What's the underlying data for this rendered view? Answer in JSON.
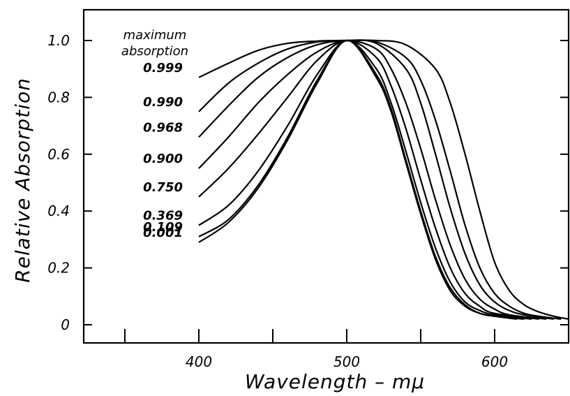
{
  "chart_data": {
    "type": "line",
    "xlabel": "Wavelength – mμ",
    "ylabel": "Relative Absorption",
    "xlim": [
      330,
      665
    ],
    "ylim": [
      -0.05,
      1.1
    ],
    "x_ticks": [
      400,
      500,
      600
    ],
    "x_tick_labels": [
      "400",
      "500",
      "600"
    ],
    "x_minor_ticks": [
      350,
      450,
      550,
      650
    ],
    "y_ticks": [
      0,
      0.2,
      0.4,
      0.6,
      0.8,
      1.0
    ],
    "y_tick_labels": [
      "0",
      "0.2",
      "0.4",
      "0.6",
      "0.8",
      "1.0"
    ],
    "legend_title": [
      "maximum",
      "absorption"
    ],
    "series": [
      {
        "name": "0.999",
        "x": [
          400,
          420,
          440,
          460,
          480,
          500,
          520,
          540,
          560,
          570,
          580,
          590,
          600,
          610,
          620,
          630,
          640,
          650
        ],
        "y": [
          0.87,
          0.92,
          0.965,
          0.99,
          0.998,
          1.0,
          1.0,
          0.985,
          0.9,
          0.78,
          0.6,
          0.4,
          0.22,
          0.12,
          0.07,
          0.045,
          0.03,
          0.02
        ]
      },
      {
        "name": "0.990",
        "x": [
          400,
          420,
          440,
          460,
          480,
          500,
          520,
          540,
          550,
          560,
          570,
          580,
          590,
          600,
          610,
          620,
          630,
          645
        ],
        "y": [
          0.75,
          0.85,
          0.92,
          0.97,
          0.995,
          1.0,
          0.995,
          0.94,
          0.86,
          0.72,
          0.54,
          0.35,
          0.2,
          0.11,
          0.065,
          0.04,
          0.03,
          0.02
        ]
      },
      {
        "name": "0.968",
        "x": [
          400,
          420,
          440,
          460,
          480,
          500,
          520,
          540,
          550,
          560,
          570,
          580,
          590,
          600,
          610,
          620,
          640
        ],
        "y": [
          0.66,
          0.77,
          0.87,
          0.94,
          0.985,
          1.0,
          0.99,
          0.9,
          0.78,
          0.6,
          0.41,
          0.25,
          0.14,
          0.08,
          0.05,
          0.035,
          0.02
        ]
      },
      {
        "name": "0.900",
        "x": [
          400,
          420,
          440,
          460,
          480,
          500,
          520,
          530,
          540,
          550,
          560,
          570,
          580,
          590,
          600,
          610,
          635
        ],
        "y": [
          0.55,
          0.66,
          0.78,
          0.88,
          0.96,
          1.0,
          0.97,
          0.9,
          0.78,
          0.62,
          0.44,
          0.28,
          0.16,
          0.09,
          0.055,
          0.035,
          0.02
        ]
      },
      {
        "name": "0.750",
        "x": [
          400,
          420,
          440,
          460,
          480,
          500,
          520,
          530,
          540,
          550,
          560,
          570,
          580,
          590,
          600,
          630
        ],
        "y": [
          0.45,
          0.55,
          0.67,
          0.8,
          0.93,
          1.0,
          0.94,
          0.84,
          0.69,
          0.51,
          0.34,
          0.2,
          0.11,
          0.065,
          0.04,
          0.02
        ]
      },
      {
        "name": "0.369",
        "x": [
          400,
          420,
          440,
          460,
          480,
          500,
          520,
          530,
          540,
          550,
          560,
          570,
          580,
          590,
          600,
          625
        ],
        "y": [
          0.35,
          0.42,
          0.54,
          0.7,
          0.88,
          1.0,
          0.9,
          0.78,
          0.61,
          0.43,
          0.27,
          0.15,
          0.08,
          0.05,
          0.035,
          0.02
        ]
      },
      {
        "name": "0.109",
        "x": [
          400,
          420,
          440,
          460,
          480,
          500,
          520,
          530,
          540,
          550,
          560,
          570,
          580,
          590,
          600,
          620
        ],
        "y": [
          0.31,
          0.37,
          0.49,
          0.66,
          0.86,
          1.0,
          0.88,
          0.76,
          0.58,
          0.4,
          0.24,
          0.13,
          0.07,
          0.04,
          0.03,
          0.02
        ]
      },
      {
        "name": "0.001",
        "x": [
          400,
          420,
          440,
          460,
          480,
          500,
          520,
          530,
          540,
          550,
          560,
          570,
          580,
          590,
          600,
          615
        ],
        "y": [
          0.29,
          0.36,
          0.48,
          0.65,
          0.85,
          1.0,
          0.87,
          0.75,
          0.57,
          0.39,
          0.23,
          0.12,
          0.065,
          0.04,
          0.03,
          0.02
        ]
      }
    ]
  }
}
